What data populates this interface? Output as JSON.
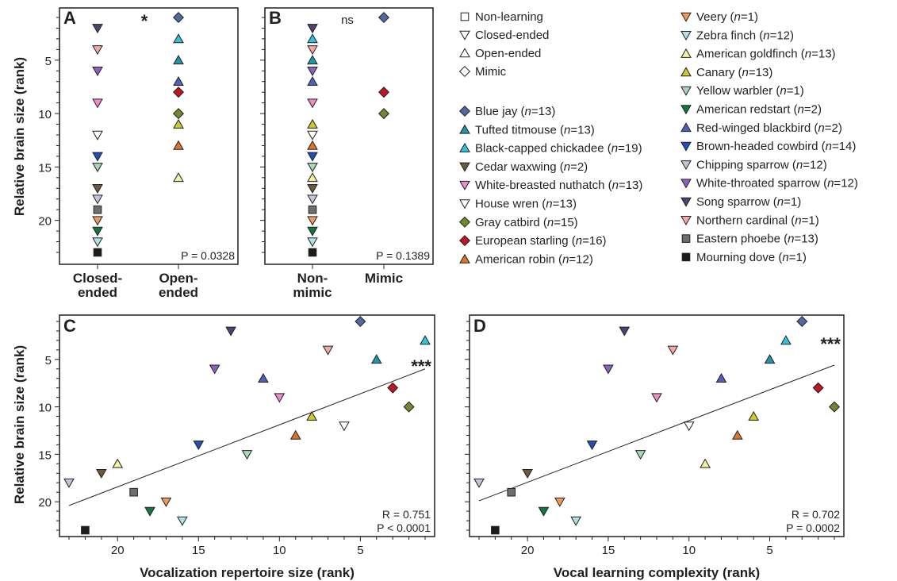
{
  "legend": {
    "shapes": [
      {
        "label": "Non-learning",
        "shape": "square"
      },
      {
        "label": "Closed-ended",
        "shape": "tri-down"
      },
      {
        "label": "Open-ended",
        "shape": "tri-up"
      },
      {
        "label": "Mimic",
        "shape": "diamond"
      }
    ],
    "species": [
      {
        "name": "Blue jay",
        "n": "13",
        "shape": "diamond",
        "color": "#4f6aa0"
      },
      {
        "name": "Tufted titmouse",
        "n": "13",
        "shape": "tri-up",
        "color": "#1d97a7"
      },
      {
        "name": "Black-capped chickadee",
        "n": "19",
        "shape": "tri-up",
        "color": "#2ec4e0"
      },
      {
        "name": "Cedar waxwing",
        "n": "2",
        "shape": "tri-down",
        "color": "#6b5a3e"
      },
      {
        "name": "White-breasted nuthatch",
        "n": "13",
        "shape": "tri-down",
        "color": "#ec8dcb"
      },
      {
        "name": "House wren",
        "n": "13",
        "shape": "tri-down",
        "color": "#ffffff"
      },
      {
        "name": "Gray catbird",
        "n": "15",
        "shape": "diamond",
        "color": "#6e8a2c"
      },
      {
        "name": "European starling",
        "n": "16",
        "shape": "diamond",
        "color": "#c0161f"
      },
      {
        "name": "American robin",
        "n": "12",
        "shape": "tri-up",
        "color": "#d9762b"
      },
      {
        "name": "Veery",
        "n": "1",
        "shape": "tri-down",
        "color": "#ed9c5b"
      },
      {
        "name": "Zebra finch",
        "n": "12",
        "shape": "tri-down",
        "color": "#aee3ec"
      },
      {
        "name": "American goldfinch",
        "n": "13",
        "shape": "tri-up",
        "color": "#f3f29c"
      },
      {
        "name": "Canary",
        "n": "13",
        "shape": "tri-up",
        "color": "#cfc92c"
      },
      {
        "name": "Yellow warbler",
        "n": "1",
        "shape": "tri-down",
        "color": "#a6d8b5"
      },
      {
        "name": "American redstart",
        "n": "2",
        "shape": "tri-down",
        "color": "#0d7a3a"
      },
      {
        "name": "Red-winged blackbird",
        "n": "2",
        "shape": "tri-up",
        "color": "#4a61c0"
      },
      {
        "name": "Brown-headed cowbird",
        "n": "14",
        "shape": "tri-down",
        "color": "#1f4fba"
      },
      {
        "name": "Chipping sparrow",
        "n": "12",
        "shape": "tri-down",
        "color": "#c8c2dc"
      },
      {
        "name": "White-throated sparrow",
        "n": "12",
        "shape": "tri-down",
        "color": "#8e62c4"
      },
      {
        "name": "Song sparrow",
        "n": "1",
        "shape": "tri-down",
        "color": "#4e4275"
      },
      {
        "name": "Northern cardinal",
        "n": "1",
        "shape": "tri-down",
        "color": "#f3a9a6"
      },
      {
        "name": "Eastern phoebe",
        "n": "13",
        "shape": "square",
        "color": "#6c6e70"
      },
      {
        "name": "Mourning dove",
        "n": "1",
        "shape": "square",
        "color": "#1c1c1c"
      }
    ]
  },
  "chart_data": [
    {
      "panel": "A",
      "type": "scatter",
      "ylabel": "Relative brain size (rank)",
      "categories": [
        "Closed-\nended",
        "Open-\nended"
      ],
      "significance": "*",
      "stat": "P = 0.0328",
      "yticks": [
        5,
        10,
        15,
        20
      ],
      "points": [
        {
          "species": "Song sparrow",
          "cat": 0,
          "y": 2
        },
        {
          "species": "Northern cardinal",
          "cat": 0,
          "y": 4
        },
        {
          "species": "White-throated sparrow",
          "cat": 0,
          "y": 6
        },
        {
          "species": "White-breasted nuthatch",
          "cat": 0,
          "y": 9
        },
        {
          "species": "House wren",
          "cat": 0,
          "y": 12
        },
        {
          "species": "Brown-headed cowbird",
          "cat": 0,
          "y": 14
        },
        {
          "species": "Yellow warbler",
          "cat": 0,
          "y": 15
        },
        {
          "species": "Cedar waxwing",
          "cat": 0,
          "y": 17
        },
        {
          "species": "Chipping sparrow",
          "cat": 0,
          "y": 18
        },
        {
          "species": "Eastern phoebe",
          "cat": 0,
          "y": 19
        },
        {
          "species": "Veery",
          "cat": 0,
          "y": 20
        },
        {
          "species": "American redstart",
          "cat": 0,
          "y": 21
        },
        {
          "species": "Zebra finch",
          "cat": 0,
          "y": 22
        },
        {
          "species": "Mourning dove",
          "cat": 0,
          "y": 23
        },
        {
          "species": "Blue jay",
          "cat": 1,
          "y": 1
        },
        {
          "species": "Black-capped chickadee",
          "cat": 1,
          "y": 3
        },
        {
          "species": "Tufted titmouse",
          "cat": 1,
          "y": 5
        },
        {
          "species": "Red-winged blackbird",
          "cat": 1,
          "y": 7
        },
        {
          "species": "European starling",
          "cat": 1,
          "y": 8
        },
        {
          "species": "Gray catbird",
          "cat": 1,
          "y": 10
        },
        {
          "species": "Canary",
          "cat": 1,
          "y": 11
        },
        {
          "species": "American robin",
          "cat": 1,
          "y": 13
        },
        {
          "species": "American goldfinch",
          "cat": 1,
          "y": 16
        }
      ]
    },
    {
      "panel": "B",
      "type": "scatter",
      "categories": [
        "Non-\nmimic",
        "Mimic"
      ],
      "significance": "ns",
      "stat": "P = 0.1389",
      "points": [
        {
          "species": "Song sparrow",
          "cat": 0,
          "y": 2
        },
        {
          "species": "Black-capped chickadee",
          "cat": 0,
          "y": 3
        },
        {
          "species": "Northern cardinal",
          "cat": 0,
          "y": 4
        },
        {
          "species": "Tufted titmouse",
          "cat": 0,
          "y": 5
        },
        {
          "species": "White-throated sparrow",
          "cat": 0,
          "y": 6
        },
        {
          "species": "Red-winged blackbird",
          "cat": 0,
          "y": 7
        },
        {
          "species": "White-breasted nuthatch",
          "cat": 0,
          "y": 9
        },
        {
          "species": "Canary",
          "cat": 0,
          "y": 11
        },
        {
          "species": "House wren",
          "cat": 0,
          "y": 12
        },
        {
          "species": "American robin",
          "cat": 0,
          "y": 13
        },
        {
          "species": "Brown-headed cowbird",
          "cat": 0,
          "y": 14
        },
        {
          "species": "Yellow warbler",
          "cat": 0,
          "y": 15
        },
        {
          "species": "American goldfinch",
          "cat": 0,
          "y": 16
        },
        {
          "species": "Cedar waxwing",
          "cat": 0,
          "y": 17
        },
        {
          "species": "Chipping sparrow",
          "cat": 0,
          "y": 18
        },
        {
          "species": "Eastern phoebe",
          "cat": 0,
          "y": 19
        },
        {
          "species": "Veery",
          "cat": 0,
          "y": 20
        },
        {
          "species": "American redstart",
          "cat": 0,
          "y": 21
        },
        {
          "species": "Zebra finch",
          "cat": 0,
          "y": 22
        },
        {
          "species": "Mourning dove",
          "cat": 0,
          "y": 23
        },
        {
          "species": "Blue jay",
          "cat": 1,
          "y": 1
        },
        {
          "species": "European starling",
          "cat": 1,
          "y": 8
        },
        {
          "species": "Gray catbird",
          "cat": 1,
          "y": 10
        }
      ]
    },
    {
      "panel": "C",
      "type": "scatter",
      "xlabel": "Vocalization repertoire size (rank)",
      "ylabel": "Relative brain size (rank)",
      "xticks": [
        20,
        15,
        10,
        5
      ],
      "yticks": [
        5,
        10,
        15,
        20
      ],
      "significance": "***",
      "stat_r": "R = 0.751",
      "stat_p": "P < 0.0001",
      "fit": {
        "x": [
          23,
          1
        ],
        "y": [
          20.4,
          6.0
        ]
      },
      "points": [
        {
          "species": "Chipping sparrow",
          "x": 23,
          "y": 18
        },
        {
          "species": "Mourning dove",
          "x": 22,
          "y": 23
        },
        {
          "species": "Cedar waxwing",
          "x": 21,
          "y": 17
        },
        {
          "species": "American goldfinch",
          "x": 20,
          "y": 16
        },
        {
          "species": "Eastern phoebe",
          "x": 19,
          "y": 19
        },
        {
          "species": "American redstart",
          "x": 18,
          "y": 21
        },
        {
          "species": "Veery",
          "x": 17,
          "y": 20
        },
        {
          "species": "Zebra finch",
          "x": 16,
          "y": 22
        },
        {
          "species": "Brown-headed cowbird",
          "x": 15,
          "y": 14
        },
        {
          "species": "White-throated sparrow",
          "x": 14,
          "y": 6
        },
        {
          "species": "Song sparrow",
          "x": 13,
          "y": 2
        },
        {
          "species": "Yellow warbler",
          "x": 12,
          "y": 15
        },
        {
          "species": "Red-winged blackbird",
          "x": 11,
          "y": 7
        },
        {
          "species": "White-breasted nuthatch",
          "x": 10,
          "y": 9
        },
        {
          "species": "American robin",
          "x": 9,
          "y": 13
        },
        {
          "species": "Canary",
          "x": 8,
          "y": 11
        },
        {
          "species": "Northern cardinal",
          "x": 7,
          "y": 4
        },
        {
          "species": "House wren",
          "x": 6,
          "y": 12
        },
        {
          "species": "Blue jay",
          "x": 5,
          "y": 1
        },
        {
          "species": "Tufted titmouse",
          "x": 4,
          "y": 5
        },
        {
          "species": "European starling",
          "x": 3,
          "y": 8
        },
        {
          "species": "Gray catbird",
          "x": 2,
          "y": 10
        },
        {
          "species": "Black-capped chickadee",
          "x": 1,
          "y": 3
        }
      ]
    },
    {
      "panel": "D",
      "type": "scatter",
      "xlabel": "Vocal learning complexity (rank)",
      "xticks": [
        20,
        15,
        10,
        5
      ],
      "yticks": [
        5,
        10,
        15,
        20
      ],
      "significance": "***",
      "stat_r": "R = 0.702",
      "stat_p": "P = 0.0002",
      "fit": {
        "x": [
          23,
          1
        ],
        "y": [
          19.9,
          5.6
        ]
      },
      "points": [
        {
          "species": "Chipping sparrow",
          "x": 23,
          "y": 18
        },
        {
          "species": "Mourning dove",
          "x": 22,
          "y": 23
        },
        {
          "species": "Eastern phoebe",
          "x": 21,
          "y": 19
        },
        {
          "species": "Cedar waxwing",
          "x": 20,
          "y": 17
        },
        {
          "species": "American redstart",
          "x": 19,
          "y": 21
        },
        {
          "species": "Veery",
          "x": 18,
          "y": 20
        },
        {
          "species": "Zebra finch",
          "x": 17,
          "y": 22
        },
        {
          "species": "Brown-headed cowbird",
          "x": 16,
          "y": 14
        },
        {
          "species": "White-throated sparrow",
          "x": 15,
          "y": 6
        },
        {
          "species": "Song sparrow",
          "x": 14,
          "y": 2
        },
        {
          "species": "Yellow warbler",
          "x": 13,
          "y": 15
        },
        {
          "species": "White-breasted nuthatch",
          "x": 12,
          "y": 9
        },
        {
          "species": "Northern cardinal",
          "x": 11,
          "y": 4
        },
        {
          "species": "House wren",
          "x": 10,
          "y": 12
        },
        {
          "species": "American goldfinch",
          "x": 9,
          "y": 16
        },
        {
          "species": "Red-winged blackbird",
          "x": 8,
          "y": 7
        },
        {
          "species": "American robin",
          "x": 7,
          "y": 13
        },
        {
          "species": "Canary",
          "x": 6,
          "y": 11
        },
        {
          "species": "Tufted titmouse",
          "x": 5,
          "y": 5
        },
        {
          "species": "Black-capped chickadee",
          "x": 4,
          "y": 3
        },
        {
          "species": "Blue jay",
          "x": 3,
          "y": 1
        },
        {
          "species": "European starling",
          "x": 2,
          "y": 8
        },
        {
          "species": "Gray catbird",
          "x": 1,
          "y": 10
        }
      ]
    }
  ]
}
